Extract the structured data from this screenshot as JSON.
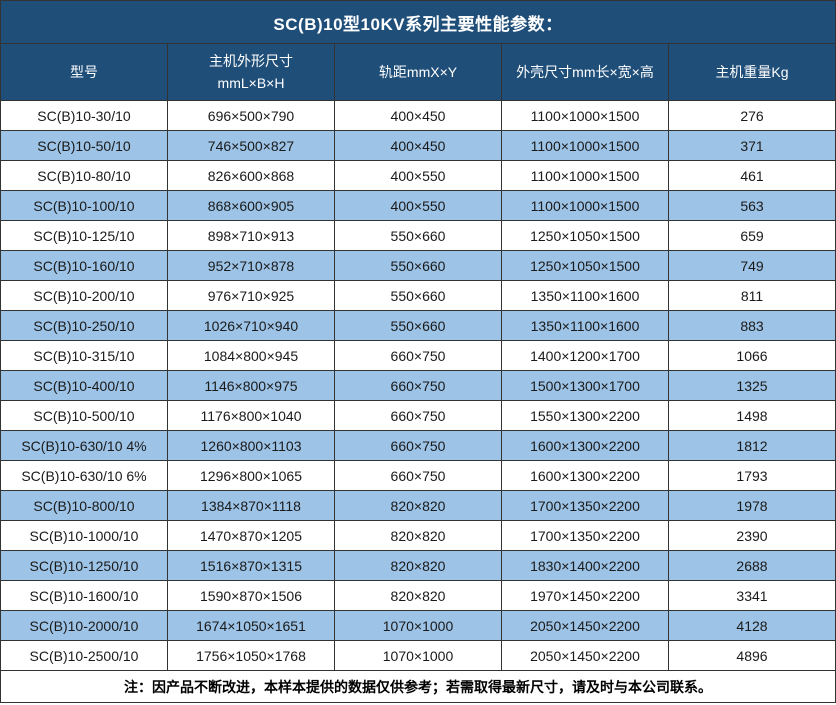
{
  "colors": {
    "header_bg": "#1F4E79",
    "header_text": "#FFFFFF",
    "row_bg": "#FFFFFF",
    "row_alt_bg": "#9DC3E6",
    "border": "#333333",
    "body_text": "#1A1A1A"
  },
  "note": "注：因产品不断改进，本样本提供的数据仅供参考；若需取得最新尺寸，请及时与本公司联系。",
  "chart_data": {
    "type": "table",
    "title": "SC(B)10型10KV系列主要性能参数：",
    "columns": [
      "型号",
      "主机外形尺寸\nmmL×B×H",
      "轨距mmX×Y",
      "外壳尺寸mm长×宽×高",
      "主机重量Kg"
    ],
    "rows": [
      [
        "SC(B)10-30/10",
        "696×500×790",
        "400×450",
        "1100×1000×1500",
        "276"
      ],
      [
        "SC(B)10-50/10",
        "746×500×827",
        "400×450",
        "1100×1000×1500",
        "371"
      ],
      [
        "SC(B)10-80/10",
        "826×600×868",
        "400×550",
        "1100×1000×1500",
        "461"
      ],
      [
        "SC(B)10-100/10",
        "868×600×905",
        "400×550",
        "1100×1000×1500",
        "563"
      ],
      [
        "SC(B)10-125/10",
        "898×710×913",
        "550×660",
        "1250×1050×1500",
        "659"
      ],
      [
        "SC(B)10-160/10",
        "952×710×878",
        "550×660",
        "1250×1050×1500",
        "749"
      ],
      [
        "SC(B)10-200/10",
        "976×710×925",
        "550×660",
        "1350×1100×1600",
        "811"
      ],
      [
        "SC(B)10-250/10",
        "1026×710×940",
        "550×660",
        "1350×1100×1600",
        "883"
      ],
      [
        "SC(B)10-315/10",
        "1084×800×945",
        "660×750",
        "1400×1200×1700",
        "1066"
      ],
      [
        "SC(B)10-400/10",
        "1146×800×975",
        "660×750",
        "1500×1300×1700",
        "1325"
      ],
      [
        "SC(B)10-500/10",
        "1176×800×1040",
        "660×750",
        "1550×1300×2200",
        "1498"
      ],
      [
        "SC(B)10-630/10 4%",
        "1260×800×1103",
        "660×750",
        "1600×1300×2200",
        "1812"
      ],
      [
        "SC(B)10-630/10 6%",
        "1296×800×1065",
        "660×750",
        "1600×1300×2200",
        "1793"
      ],
      [
        "SC(B)10-800/10",
        "1384×870×1118",
        "820×820",
        "1700×1350×2200",
        "1978"
      ],
      [
        "SC(B)10-1000/10",
        "1470×870×1205",
        "820×820",
        "1700×1350×2200",
        "2390"
      ],
      [
        "SC(B)10-1250/10",
        "1516×870×1315",
        "820×820",
        "1830×1400×2200",
        "2688"
      ],
      [
        "SC(B)10-1600/10",
        "1590×870×1506",
        "820×820",
        "1970×1450×2200",
        "3341"
      ],
      [
        "SC(B)10-2000/10",
        "1674×1050×1651",
        "1070×1000",
        "2050×1450×2200",
        "4128"
      ],
      [
        "SC(B)10-2500/10",
        "1756×1050×1768",
        "1070×1000",
        "2050×1450×2200",
        "4896"
      ]
    ]
  }
}
